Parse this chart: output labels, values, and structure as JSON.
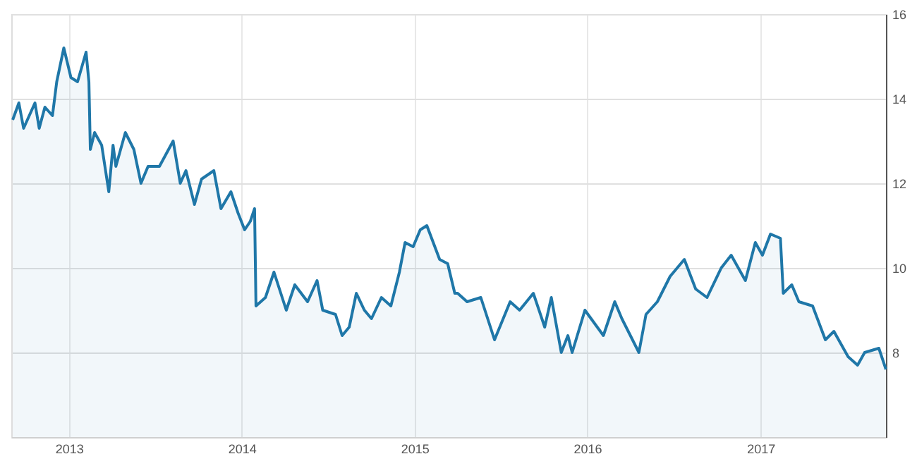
{
  "chart_data": {
    "type": "area",
    "line_style": "solid",
    "marker": "none",
    "grid": true,
    "xlim": [
      "2012-09-01",
      "2017-09-23"
    ],
    "xticks": [
      {
        "value": "2013-01-01",
        "label": "2013"
      },
      {
        "value": "2014-01-01",
        "label": "2014"
      },
      {
        "value": "2015-01-01",
        "label": "2015"
      },
      {
        "value": "2016-01-01",
        "label": "2016"
      },
      {
        "value": "2017-01-01",
        "label": "2017"
      }
    ],
    "ylim": [
      6,
      16
    ],
    "yticks": [
      8,
      10,
      12,
      14,
      16
    ],
    "series": [
      {
        "color": "#1f77a8",
        "x": [
          "2012-09-04",
          "2012-09-17",
          "2012-09-27",
          "2012-10-21",
          "2012-10-30",
          "2012-11-11",
          "2012-11-27",
          "2012-12-06",
          "2012-12-21",
          "2013-01-05",
          "2013-01-19",
          "2013-02-06",
          "2013-02-12",
          "2013-02-15",
          "2013-02-24",
          "2013-03-11",
          "2013-03-26",
          "2013-04-04",
          "2013-04-10",
          "2013-04-30",
          "2013-05-18",
          "2013-06-02",
          "2013-06-17",
          "2013-07-11",
          "2013-08-09",
          "2013-08-24",
          "2013-09-05",
          "2013-09-23",
          "2013-10-08",
          "2013-11-03",
          "2013-11-18",
          "2013-12-09",
          "2013-12-24",
          "2014-01-07",
          "2014-01-19",
          "2014-01-28",
          "2014-01-31",
          "2014-02-20",
          "2014-03-10",
          "2014-04-05",
          "2014-04-23",
          "2014-05-20",
          "2014-06-09",
          "2014-06-21",
          "2014-07-18",
          "2014-08-01",
          "2014-08-16",
          "2014-08-31",
          "2014-09-17",
          "2014-10-02",
          "2014-10-23",
          "2014-11-12",
          "2014-11-30",
          "2014-12-12",
          "2014-12-29",
          "2015-01-13",
          "2015-01-27",
          "2015-02-23",
          "2015-03-12",
          "2015-03-27",
          "2015-04-02",
          "2015-04-22",
          "2015-05-21",
          "2015-06-19",
          "2015-07-22",
          "2015-08-11",
          "2015-09-09",
          "2015-10-03",
          "2015-10-17",
          "2015-11-07",
          "2015-11-21",
          "2015-11-30",
          "2015-12-27",
          "2016-02-04",
          "2016-02-28",
          "2016-03-14",
          "2016-04-19",
          "2016-05-04",
          "2016-05-28",
          "2016-06-24",
          "2016-07-24",
          "2016-08-17",
          "2016-09-10",
          "2016-10-10",
          "2016-10-31",
          "2016-11-30",
          "2016-12-21",
          "2017-01-05",
          "2017-01-22",
          "2017-02-12",
          "2017-02-18",
          "2017-03-08",
          "2017-03-23",
          "2017-04-21",
          "2017-05-18",
          "2017-06-05",
          "2017-07-05",
          "2017-07-25",
          "2017-08-09",
          "2017-09-08",
          "2017-09-23"
        ],
        "values": [
          13.5,
          13.9,
          13.3,
          13.9,
          13.3,
          13.8,
          13.6,
          14.4,
          15.2,
          14.5,
          14.4,
          15.1,
          14.4,
          12.8,
          13.2,
          12.9,
          11.8,
          12.9,
          12.4,
          13.2,
          12.8,
          12.0,
          12.4,
          12.4,
          13.0,
          12.0,
          12.3,
          11.5,
          12.1,
          12.3,
          11.4,
          11.8,
          11.3,
          10.9,
          11.1,
          11.4,
          9.1,
          9.3,
          9.9,
          9.0,
          9.6,
          9.2,
          9.7,
          9.0,
          8.9,
          8.4,
          8.6,
          9.4,
          9.0,
          8.8,
          9.3,
          9.1,
          9.9,
          10.6,
          10.5,
          10.9,
          11.0,
          10.2,
          10.1,
          9.4,
          9.4,
          9.2,
          9.3,
          8.3,
          9.2,
          9.0,
          9.4,
          8.6,
          9.3,
          8.0,
          8.4,
          8.0,
          9.0,
          8.4,
          9.2,
          8.8,
          8.0,
          8.9,
          9.2,
          9.8,
          10.2,
          9.5,
          9.3,
          10.0,
          10.3,
          9.7,
          10.6,
          10.3,
          10.8,
          10.7,
          9.4,
          9.6,
          9.2,
          9.1,
          8.3,
          8.5,
          7.9,
          7.7,
          8.0,
          8.1,
          7.6
        ]
      }
    ]
  }
}
